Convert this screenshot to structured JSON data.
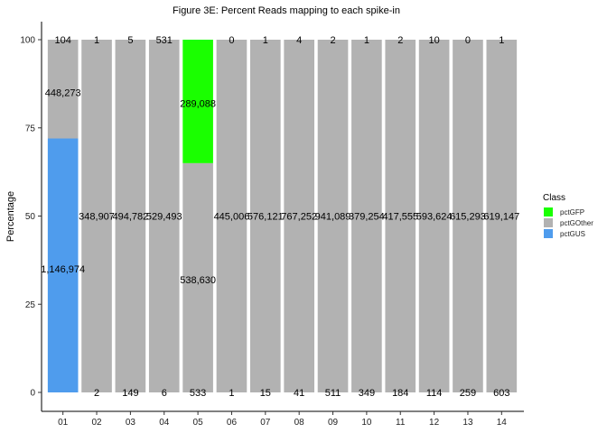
{
  "chart_data": {
    "type": "bar",
    "stacked": true,
    "title": "Figure 3E: Percent Reads mapping to each spike-in",
    "xlabel": "",
    "ylabel": "Percentage",
    "ylim": [
      0,
      100
    ],
    "yticks": [
      0,
      25,
      50,
      75,
      100
    ],
    "categories": [
      "01",
      "02",
      "03",
      "04",
      "05",
      "06",
      "07",
      "08",
      "09",
      "10",
      "11",
      "12",
      "13",
      "14"
    ],
    "series": [
      {
        "name": "pctGUS",
        "color": "#4f9ced",
        "values": [
          72,
          0,
          0,
          0,
          0,
          0,
          0,
          0,
          0,
          0,
          0,
          0,
          0,
          0
        ]
      },
      {
        "name": "pctGOther",
        "color": "#b2b2b2",
        "values": [
          28,
          100,
          100,
          100,
          65,
          100,
          100,
          100,
          100,
          100,
          100,
          100,
          100,
          100
        ]
      },
      {
        "name": "pctGFP",
        "color": "#1aff00",
        "values": [
          0,
          0,
          0,
          0,
          35,
          0,
          0,
          0,
          0,
          0,
          0,
          0,
          0,
          0
        ]
      }
    ],
    "labels": [
      {
        "bar": 0,
        "y": 100,
        "text": "104"
      },
      {
        "bar": 0,
        "y": 85,
        "text": "448,273"
      },
      {
        "bar": 0,
        "y": 35,
        "text": "1,146,974"
      },
      {
        "bar": 1,
        "y": 100,
        "text": "1"
      },
      {
        "bar": 1,
        "y": 50,
        "text": "348,907"
      },
      {
        "bar": 1,
        "y": 0,
        "text": "2"
      },
      {
        "bar": 2,
        "y": 100,
        "text": "5"
      },
      {
        "bar": 2,
        "y": 50,
        "text": "494,782"
      },
      {
        "bar": 2,
        "y": 0,
        "text": "149"
      },
      {
        "bar": 3,
        "y": 100,
        "text": "531"
      },
      {
        "bar": 3,
        "y": 50,
        "text": "529,493"
      },
      {
        "bar": 3,
        "y": 0,
        "text": "6"
      },
      {
        "bar": 4,
        "y": 82,
        "text": "289,088"
      },
      {
        "bar": 4,
        "y": 32,
        "text": "538,630"
      },
      {
        "bar": 4,
        "y": 0,
        "text": "533"
      },
      {
        "bar": 5,
        "y": 100,
        "text": "0"
      },
      {
        "bar": 5,
        "y": 50,
        "text": "445,006"
      },
      {
        "bar": 5,
        "y": 0,
        "text": "1"
      },
      {
        "bar": 6,
        "y": 100,
        "text": "1"
      },
      {
        "bar": 6,
        "y": 50,
        "text": "576,121"
      },
      {
        "bar": 6,
        "y": 0,
        "text": "15"
      },
      {
        "bar": 7,
        "y": 100,
        "text": "4"
      },
      {
        "bar": 7,
        "y": 50,
        "text": "767,252"
      },
      {
        "bar": 7,
        "y": 0,
        "text": "41"
      },
      {
        "bar": 8,
        "y": 100,
        "text": "2"
      },
      {
        "bar": 8,
        "y": 50,
        "text": "941,089"
      },
      {
        "bar": 8,
        "y": 0,
        "text": "511"
      },
      {
        "bar": 9,
        "y": 100,
        "text": "1"
      },
      {
        "bar": 9,
        "y": 50,
        "text": "379,254"
      },
      {
        "bar": 9,
        "y": 0,
        "text": "349"
      },
      {
        "bar": 10,
        "y": 100,
        "text": "2"
      },
      {
        "bar": 10,
        "y": 50,
        "text": "417,555"
      },
      {
        "bar": 10,
        "y": 0,
        "text": "184"
      },
      {
        "bar": 11,
        "y": 100,
        "text": "10"
      },
      {
        "bar": 11,
        "y": 50,
        "text": "593,624"
      },
      {
        "bar": 11,
        "y": 0,
        "text": "114"
      },
      {
        "bar": 12,
        "y": 100,
        "text": "0"
      },
      {
        "bar": 12,
        "y": 50,
        "text": "615,293"
      },
      {
        "bar": 12,
        "y": 0,
        "text": "259"
      },
      {
        "bar": 13,
        "y": 100,
        "text": "1"
      },
      {
        "bar": 13,
        "y": 50,
        "text": "619,147"
      },
      {
        "bar": 13,
        "y": 0,
        "text": "603"
      }
    ],
    "legend": {
      "title": "Class",
      "position": "right",
      "items": [
        {
          "name": "pctGFP",
          "color": "#1aff00"
        },
        {
          "name": "pctGOther",
          "color": "#b2b2b2"
        },
        {
          "name": "pctGUS",
          "color": "#4f9ced"
        }
      ]
    }
  }
}
